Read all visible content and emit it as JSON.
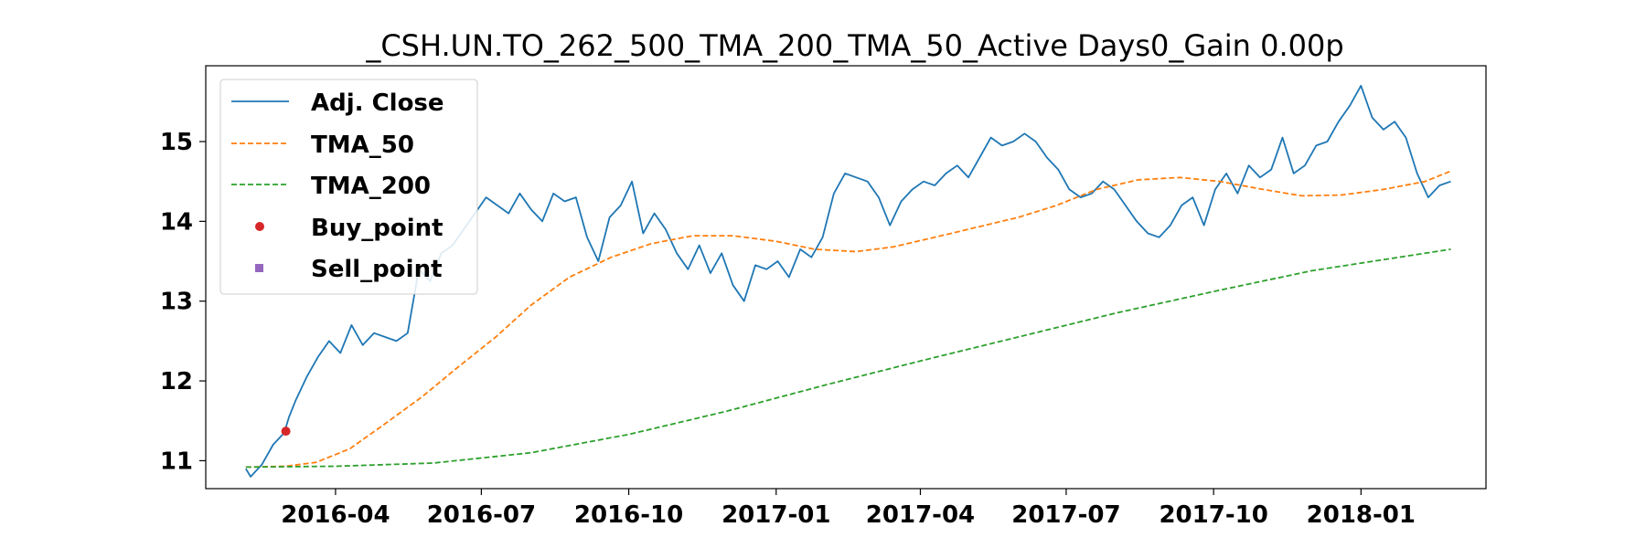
{
  "chart_data": {
    "type": "line",
    "title": "_CSH.UN.TO_262_500_TMA_200_TMA_50_Active Days0_Gain   0.00p",
    "xlabel": "",
    "ylabel": "",
    "x_range": [
      "2016-01-11",
      "2018-03-20"
    ],
    "ylim": [
      10.65,
      15.95
    ],
    "x_ticks": [
      "2016-04",
      "2016-07",
      "2016-10",
      "2017-01",
      "2017-04",
      "2017-07",
      "2017-10",
      "2018-01"
    ],
    "y_ticks": [
      11,
      12,
      13,
      14,
      15
    ],
    "grid": false,
    "legend": {
      "placement": "top-left",
      "entries": [
        "Adj. Close",
        "TMA_50",
        "TMA_200",
        "Buy_point",
        "Sell_point"
      ]
    },
    "colors": {
      "adj_close": "#1f77b4",
      "tma_50": "#ff7f0e",
      "tma_200": "#2ca02c",
      "buy": "#d62728",
      "sell": "#9467bd"
    },
    "series": [
      {
        "name": "Adj. Close",
        "style": "solid",
        "x": [
          "2016-02-05",
          "2016-02-08",
          "2016-02-15",
          "2016-02-22",
          "2016-02-29",
          "2016-03-03",
          "2016-03-07",
          "2016-03-14",
          "2016-03-21",
          "2016-03-28",
          "2016-04-04",
          "2016-04-11",
          "2016-04-18",
          "2016-04-25",
          "2016-05-02",
          "2016-05-09",
          "2016-05-16",
          "2016-05-23",
          "2016-05-30",
          "2016-06-06",
          "2016-06-13",
          "2016-06-20",
          "2016-06-27",
          "2016-07-04",
          "2016-07-11",
          "2016-07-18",
          "2016-07-25",
          "2016-08-01",
          "2016-08-08",
          "2016-08-15",
          "2016-08-22",
          "2016-08-29",
          "2016-09-05",
          "2016-09-12",
          "2016-09-19",
          "2016-09-26",
          "2016-10-03",
          "2016-10-10",
          "2016-10-17",
          "2016-10-24",
          "2016-10-31",
          "2016-11-07",
          "2016-11-14",
          "2016-11-21",
          "2016-11-28",
          "2016-12-05",
          "2016-12-12",
          "2016-12-19",
          "2016-12-26",
          "2017-01-02",
          "2017-01-09",
          "2017-01-16",
          "2017-01-23",
          "2017-01-30",
          "2017-02-06",
          "2017-02-13",
          "2017-02-20",
          "2017-02-27",
          "2017-03-06",
          "2017-03-13",
          "2017-03-20",
          "2017-03-27",
          "2017-04-03",
          "2017-04-10",
          "2017-04-17",
          "2017-04-24",
          "2017-05-01",
          "2017-05-08",
          "2017-05-15",
          "2017-05-22",
          "2017-05-29",
          "2017-06-05",
          "2017-06-12",
          "2017-06-19",
          "2017-06-26",
          "2017-07-03",
          "2017-07-10",
          "2017-07-17",
          "2017-07-24",
          "2017-07-31",
          "2017-08-07",
          "2017-08-14",
          "2017-08-21",
          "2017-08-28",
          "2017-09-04",
          "2017-09-11",
          "2017-09-18",
          "2017-09-25",
          "2017-10-02",
          "2017-10-09",
          "2017-10-16",
          "2017-10-23",
          "2017-10-30",
          "2017-11-06",
          "2017-11-13",
          "2017-11-20",
          "2017-11-27",
          "2017-12-04",
          "2017-12-11",
          "2017-12-18",
          "2017-12-25",
          "2018-01-01",
          "2018-01-08",
          "2018-01-15",
          "2018-01-22",
          "2018-01-29",
          "2018-02-05",
          "2018-02-12",
          "2018-02-19",
          "2018-02-26"
        ],
        "values": [
          10.9,
          10.8,
          10.95,
          11.2,
          11.35,
          11.55,
          11.75,
          12.05,
          12.3,
          12.5,
          12.35,
          12.7,
          12.45,
          12.6,
          12.55,
          12.5,
          12.6,
          13.4,
          13.25,
          13.6,
          13.7,
          13.9,
          14.1,
          14.3,
          14.2,
          14.1,
          14.35,
          14.15,
          14.0,
          14.35,
          14.25,
          14.3,
          13.8,
          13.5,
          14.05,
          14.2,
          14.5,
          13.85,
          14.1,
          13.9,
          13.6,
          13.4,
          13.7,
          13.35,
          13.6,
          13.2,
          13.0,
          13.45,
          13.4,
          13.5,
          13.3,
          13.65,
          13.55,
          13.8,
          14.35,
          14.6,
          14.55,
          14.5,
          14.3,
          13.95,
          14.25,
          14.4,
          14.5,
          14.45,
          14.6,
          14.7,
          14.55,
          14.8,
          15.05,
          14.95,
          15.0,
          15.1,
          15.0,
          14.8,
          14.65,
          14.4,
          14.3,
          14.35,
          14.5,
          14.4,
          14.2,
          14.0,
          13.85,
          13.8,
          13.95,
          14.2,
          14.3,
          13.95,
          14.4,
          14.6,
          14.35,
          14.7,
          14.55,
          14.65,
          15.05,
          14.6,
          14.7,
          14.95,
          15.0,
          15.25,
          15.45,
          15.7,
          15.3,
          15.15,
          15.25,
          15.05,
          14.6,
          14.3,
          14.45,
          14.5
        ]
      },
      {
        "name": "TMA_50",
        "style": "dashed",
        "x": [
          "2016-02-05",
          "2016-03-01",
          "2016-03-20",
          "2016-04-10",
          "2016-05-01",
          "2016-05-25",
          "2016-06-15",
          "2016-07-10",
          "2016-08-01",
          "2016-08-25",
          "2016-09-20",
          "2016-10-15",
          "2016-11-10",
          "2016-12-05",
          "2017-01-01",
          "2017-01-25",
          "2017-02-20",
          "2017-03-15",
          "2017-04-10",
          "2017-05-05",
          "2017-06-01",
          "2017-06-25",
          "2017-07-20",
          "2017-08-15",
          "2017-09-10",
          "2017-10-05",
          "2017-11-01",
          "2017-11-25",
          "2017-12-20",
          "2018-01-15",
          "2018-02-10",
          "2018-02-26"
        ],
        "values": [
          10.92,
          10.93,
          10.98,
          11.15,
          11.45,
          11.8,
          12.15,
          12.55,
          12.95,
          13.3,
          13.55,
          13.72,
          13.82,
          13.82,
          13.75,
          13.65,
          13.62,
          13.68,
          13.8,
          13.92,
          14.05,
          14.2,
          14.4,
          14.52,
          14.55,
          14.5,
          14.4,
          14.32,
          14.33,
          14.4,
          14.5,
          14.63
        ]
      },
      {
        "name": "TMA_200",
        "style": "dashed",
        "x": [
          "2016-02-05",
          "2016-04-01",
          "2016-06-01",
          "2016-08-01",
          "2016-10-01",
          "2016-12-01",
          "2017-02-01",
          "2017-04-01",
          "2017-06-01",
          "2017-08-01",
          "2017-10-01",
          "2017-12-01",
          "2018-02-26"
        ],
        "values": [
          10.92,
          10.93,
          10.97,
          11.1,
          11.33,
          11.62,
          11.95,
          12.25,
          12.55,
          12.85,
          13.12,
          13.38,
          13.65
        ]
      }
    ],
    "buy_points": [
      {
        "x": "2016-03-01",
        "y": 11.37
      }
    ],
    "sell_points": []
  }
}
